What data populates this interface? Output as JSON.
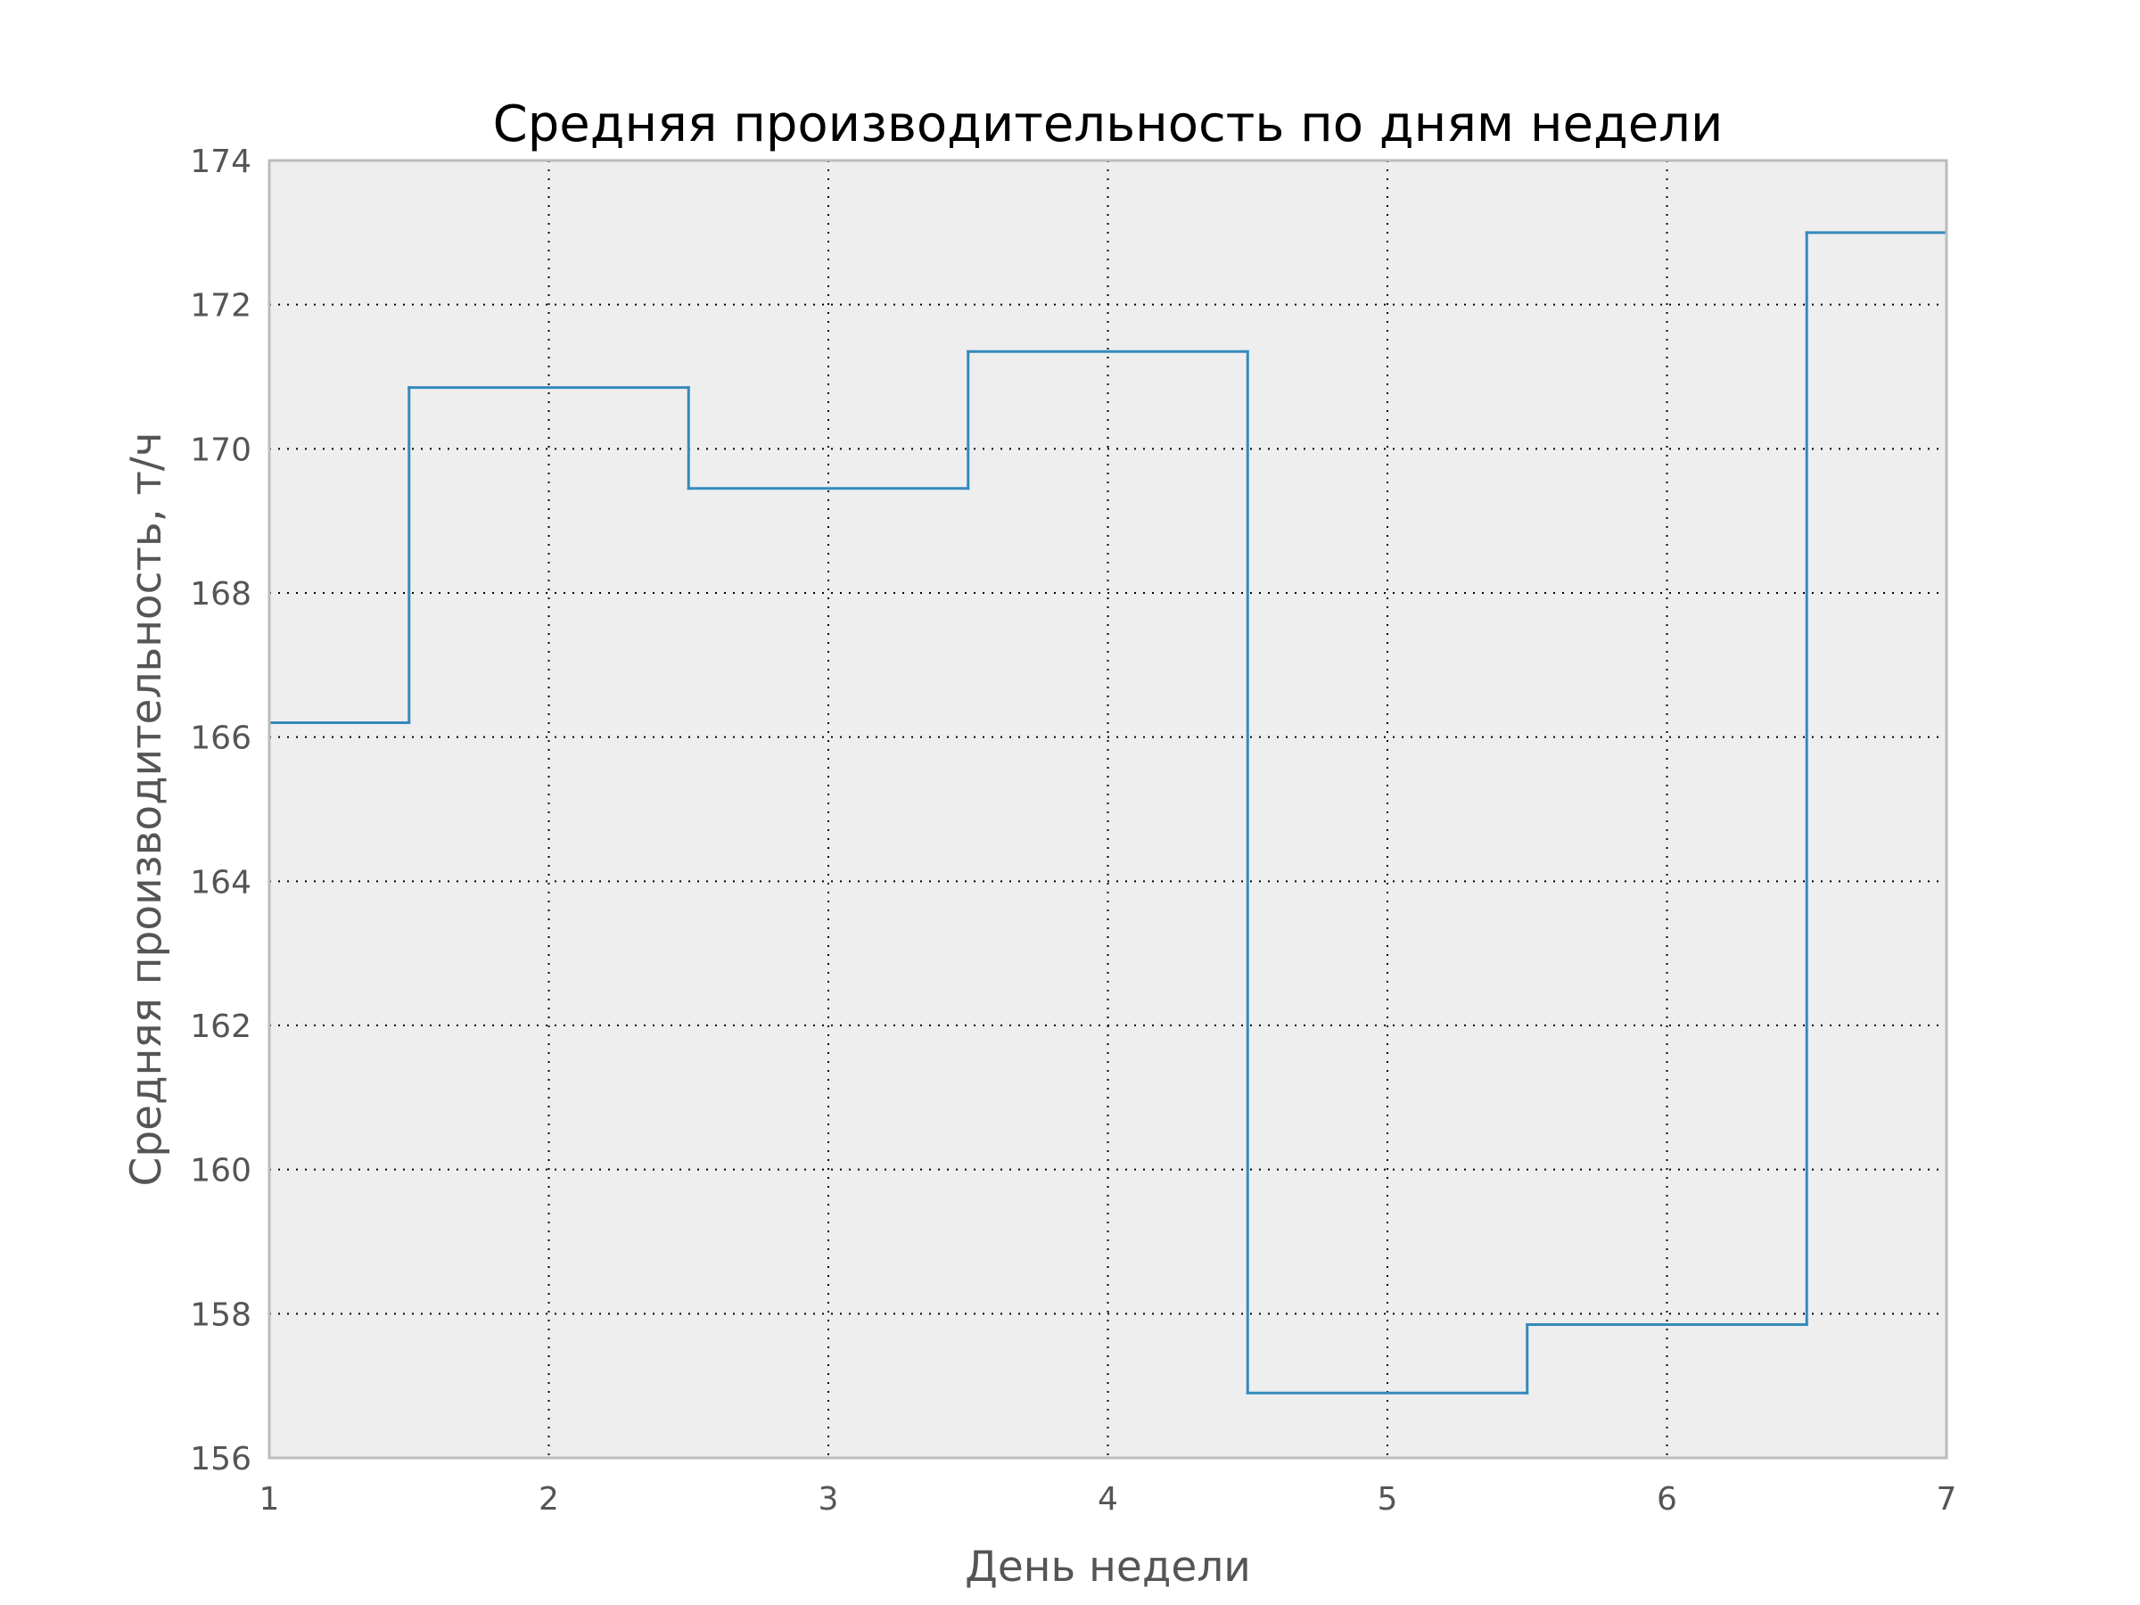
{
  "chart_data": {
    "type": "line",
    "step": "mid",
    "title": "Средняя производительность по дням недели",
    "xlabel": "День недели",
    "ylabel": "Средняя производительность, т/ч",
    "x": [
      1,
      2,
      3,
      4,
      5,
      6,
      7
    ],
    "values": [
      166.2,
      170.85,
      169.45,
      171.35,
      156.9,
      157.85,
      173.0
    ],
    "xlim": [
      1,
      7
    ],
    "ylim": [
      156,
      174
    ],
    "xticks": [
      "1",
      "2",
      "3",
      "4",
      "5",
      "6",
      "7"
    ],
    "yticks": [
      "156",
      "158",
      "160",
      "162",
      "164",
      "166",
      "168",
      "170",
      "172",
      "174"
    ],
    "grid": true,
    "legend": "none",
    "colors": {
      "line": "#348abd",
      "plot_background": "#eeeeee",
      "frame": "#bcbcbc"
    }
  }
}
